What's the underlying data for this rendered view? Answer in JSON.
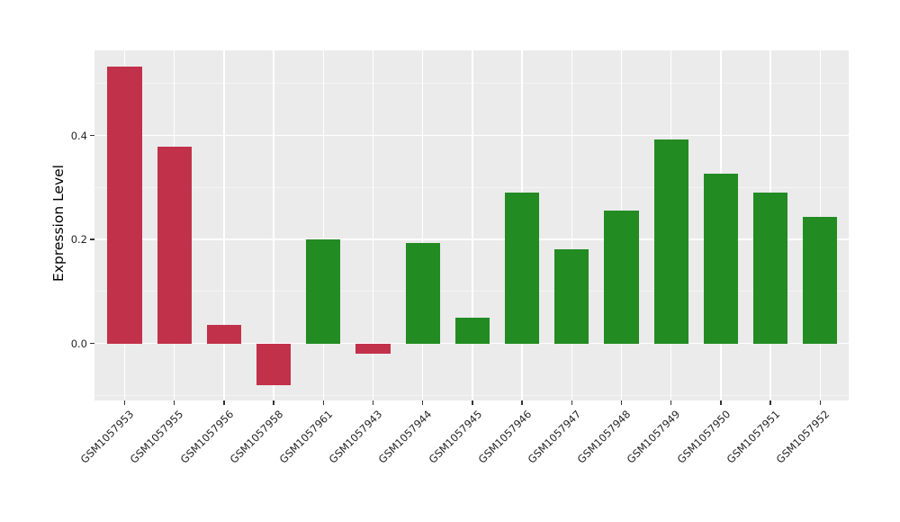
{
  "chart_data": {
    "type": "bar",
    "title": "",
    "ylabel": "Expression Level",
    "xlabel": "",
    "categories": [
      "GSM1057953",
      "GSM1057955",
      "GSM1057956",
      "GSM1057958",
      "GSM1057961",
      "GSM1057943",
      "GSM1057944",
      "GSM1057945",
      "GSM1057946",
      "GSM1057947",
      "GSM1057948",
      "GSM1057949",
      "GSM1057950",
      "GSM1057951",
      "GSM1057952"
    ],
    "values": [
      0.533,
      0.378,
      0.036,
      -0.081,
      0.201,
      -0.019,
      0.193,
      0.049,
      0.29,
      0.181,
      0.255,
      0.393,
      0.327,
      0.29,
      0.244
    ],
    "bar_colors": [
      "#C2314A",
      "#C2314A",
      "#C2314A",
      "#C2314A",
      "#228B22",
      "#C2314A",
      "#228B22",
      "#228B22",
      "#228B22",
      "#228B22",
      "#228B22",
      "#228B22",
      "#228B22",
      "#228B22",
      "#228B22"
    ],
    "yticks": [
      0.0,
      0.2,
      0.4
    ],
    "ytick_labels": [
      "0.0",
      "0.2",
      "0.4"
    ],
    "minor_yticks": [
      -0.1,
      0.1,
      0.3,
      0.5
    ],
    "ylim": [
      -0.109,
      0.564
    ],
    "grid": true,
    "legend": false,
    "style": {
      "figure_background": "#FFFFFF",
      "plot_background": "#EBEBEB",
      "major_grid_color": "#FFFFFF",
      "minor_grid_color": "#F4F4F4",
      "tick_mark_color": "#333333",
      "tick_label_color": "#262626",
      "crimson_group_color": "#C2314A",
      "green_group_color": "#228B22"
    }
  }
}
